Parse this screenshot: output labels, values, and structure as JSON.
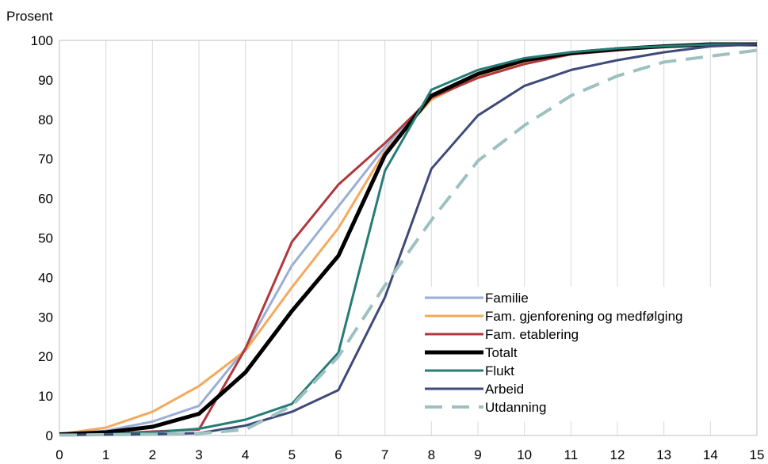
{
  "chart_data": {
    "type": "line",
    "ylabel": "Prosent",
    "xlabel": "",
    "x": [
      0,
      1,
      2,
      3,
      4,
      5,
      6,
      7,
      8,
      9,
      10,
      11,
      12,
      13,
      14,
      15
    ],
    "xlim": [
      0,
      15
    ],
    "ylim": [
      0,
      100
    ],
    "yticks": [
      0,
      10,
      20,
      30,
      40,
      50,
      60,
      70,
      80,
      90,
      100
    ],
    "xticks": [
      0,
      1,
      2,
      3,
      4,
      5,
      6,
      7,
      8,
      9,
      10,
      11,
      12,
      13,
      14,
      15
    ],
    "grid": "vertical",
    "legend_position": "bottom-right",
    "series": [
      {
        "name": "Familie",
        "color": "#9aaed6",
        "width": 3,
        "dash": "",
        "values": [
          0.3,
          1.2,
          3.5,
          7.5,
          22,
          43,
          58,
          73,
          86,
          91,
          94.5,
          96.5,
          98,
          98.5,
          99,
          99
        ]
      },
      {
        "name": "Fam. gjenforening og medfølging",
        "color": "#f4a95d",
        "width": 3,
        "dash": "",
        "values": [
          0.3,
          2,
          6,
          12.5,
          21.5,
          37.5,
          52.5,
          72,
          85,
          91,
          94.5,
          96.5,
          97.5,
          98.5,
          99,
          99
        ]
      },
      {
        "name": "Fam. etablering",
        "color": "#b0383c",
        "width": 3,
        "dash": "",
        "values": [
          0.2,
          0.4,
          1,
          1.5,
          22,
          49,
          63.5,
          74,
          85.5,
          90.5,
          94,
          96.5,
          97.5,
          98.5,
          99,
          99
        ]
      },
      {
        "name": "Totalt",
        "color": "#000000",
        "width": 5,
        "dash": "",
        "values": [
          0.3,
          0.8,
          2.2,
          5.5,
          16,
          31.5,
          45.5,
          71,
          86,
          91.5,
          95,
          96.8,
          97.8,
          98.5,
          99,
          99
        ]
      },
      {
        "name": "Flukt",
        "color": "#267d75",
        "width": 3,
        "dash": "",
        "values": [
          0.1,
          0.3,
          0.8,
          1.7,
          4,
          8,
          21,
          67,
          87.5,
          92.5,
          95.5,
          97,
          98,
          98.5,
          99,
          99
        ]
      },
      {
        "name": "Arbeid",
        "color": "#3f4a78",
        "width": 3,
        "dash": "",
        "values": [
          0.1,
          0.2,
          0.3,
          0.6,
          2.5,
          6,
          11.5,
          35,
          67.5,
          81,
          88.5,
          92.5,
          95,
          97,
          98.5,
          99
        ]
      },
      {
        "name": "Utdanning",
        "color": "#9dc1c1",
        "width": 4,
        "dash": "22,12",
        "values": [
          0.1,
          0.2,
          0.3,
          0.5,
          1.5,
          7.5,
          20,
          38,
          54.5,
          69.5,
          78.5,
          86,
          91,
          94.5,
          96,
          97.5
        ]
      }
    ]
  }
}
